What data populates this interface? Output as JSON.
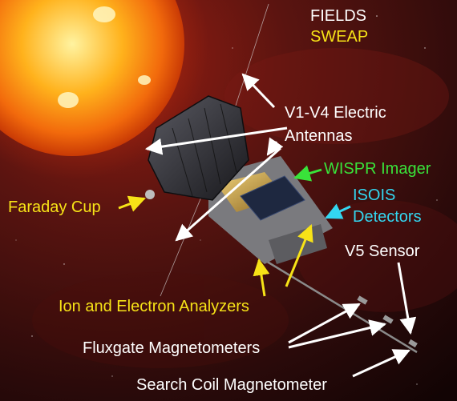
{
  "diagram": {
    "legend": [
      {
        "text": "FIELDS",
        "color": "#ffffff"
      },
      {
        "text": "SWEAP",
        "color": "#f7e317"
      }
    ],
    "labels": {
      "electric_antennas": {
        "lines": [
          "V1-V4 Electric",
          "Antennas"
        ],
        "color": "#ffffff"
      },
      "wispr": {
        "text": "WISPR Imager",
        "color": "#39e23a"
      },
      "isois": {
        "lines": [
          "ISOIS",
          "Detectors"
        ],
        "color": "#33d6f0"
      },
      "faraday": {
        "text": "Faraday Cup",
        "color": "#f7e317"
      },
      "v5": {
        "text": "V5 Sensor",
        "color": "#ffffff"
      },
      "ion_electron": {
        "text": "Ion and Electron Analyzers",
        "color": "#f7e317"
      },
      "fluxgate": {
        "text": "Fluxgate Magnetometers",
        "color": "#ffffff"
      },
      "search_coil": {
        "text": "Search Coil Magnetometer",
        "color": "#ffffff"
      }
    },
    "colors": {
      "sun": "#ff9a18",
      "background": "#3a0b0b",
      "spacecraft_shield": "#2a2a30",
      "spacecraft_body": "#8c8c8c",
      "gold_foil": "#c9a24a"
    }
  }
}
